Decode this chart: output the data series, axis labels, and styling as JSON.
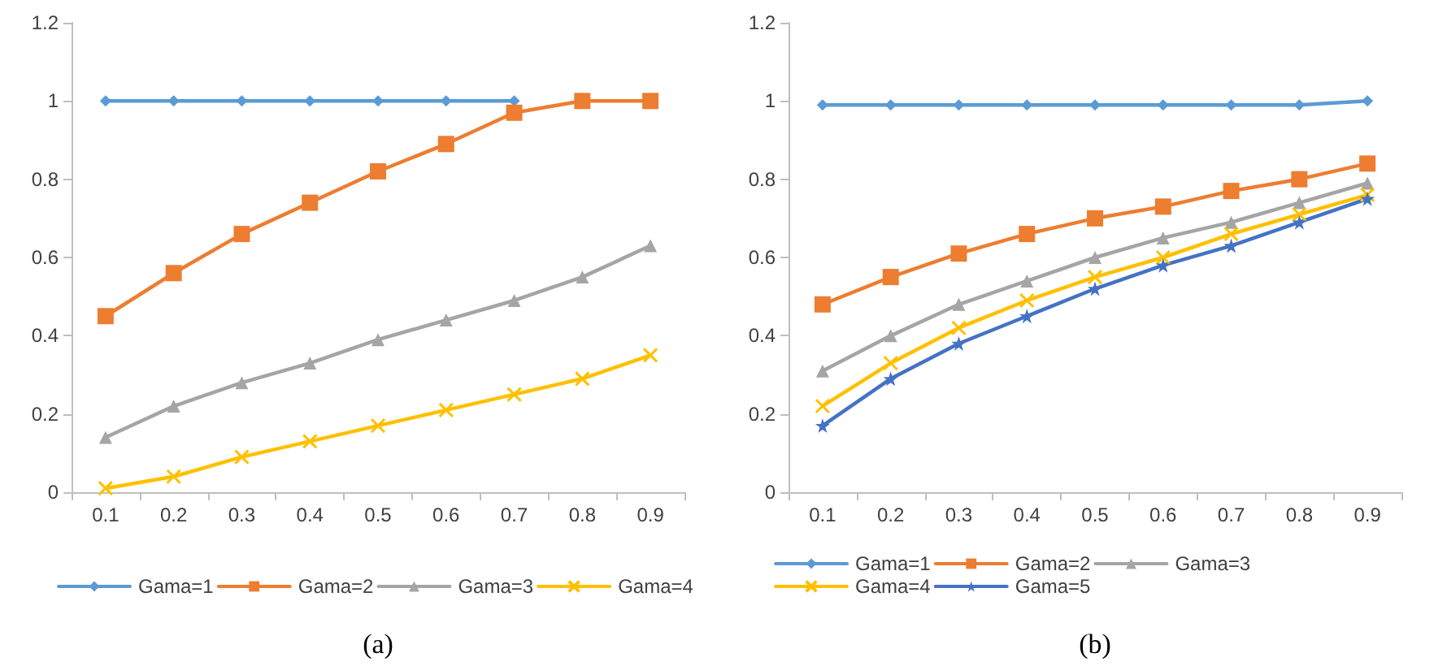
{
  "chart_data": [
    {
      "type": "line",
      "xlabel": "(a)",
      "categories": [
        "0.1",
        "0.2",
        "0.3",
        "0.4",
        "0.5",
        "0.6",
        "0.7",
        "0.8",
        "0.9"
      ],
      "ylim": [
        0,
        1.2
      ],
      "yticks": [
        0,
        0.2,
        0.4,
        0.6,
        0.8,
        1,
        1.2
      ],
      "grid": false,
      "legend": "bottom",
      "line_style": "solid",
      "series": [
        {
          "name": "Gama=1",
          "color": "#5b9bd5",
          "marker": "diamond",
          "values": [
            1,
            1,
            1,
            1,
            1,
            1,
            1,
            null,
            null
          ]
        },
        {
          "name": "Gama=2",
          "color": "#ed7d31",
          "marker": "square",
          "values": [
            0.45,
            0.56,
            0.66,
            0.74,
            0.82,
            0.89,
            0.97,
            1,
            1
          ]
        },
        {
          "name": "Gama=3",
          "color": "#a5a5a5",
          "marker": "triangle",
          "values": [
            0.14,
            0.22,
            0.28,
            0.33,
            0.39,
            0.44,
            0.49,
            0.55,
            0.63
          ]
        },
        {
          "name": "Gama=4",
          "color": "#ffc000",
          "marker": "cross",
          "values": [
            0.01,
            0.04,
            0.09,
            0.13,
            0.17,
            0.21,
            0.25,
            0.29,
            0.35
          ]
        }
      ]
    },
    {
      "type": "line",
      "xlabel": "(b)",
      "categories": [
        "0.1",
        "0.2",
        "0.3",
        "0.4",
        "0.5",
        "0.6",
        "0.7",
        "0.8",
        "0.9"
      ],
      "ylim": [
        0,
        1.2
      ],
      "yticks": [
        0,
        0.2,
        0.4,
        0.6,
        0.8,
        1,
        1.2
      ],
      "grid": false,
      "legend": "bottom",
      "line_style": "solid",
      "series": [
        {
          "name": "Gama=1",
          "color": "#5b9bd5",
          "marker": "diamond",
          "values": [
            0.99,
            0.99,
            0.99,
            0.99,
            0.99,
            0.99,
            0.99,
            0.99,
            1
          ]
        },
        {
          "name": "Gama=2",
          "color": "#ed7d31",
          "marker": "square",
          "values": [
            0.48,
            0.55,
            0.61,
            0.66,
            0.7,
            0.73,
            0.77,
            0.8,
            0.84
          ]
        },
        {
          "name": "Gama=3",
          "color": "#a5a5a5",
          "marker": "triangle",
          "values": [
            0.31,
            0.4,
            0.48,
            0.54,
            0.6,
            0.65,
            0.69,
            0.74,
            0.79
          ]
        },
        {
          "name": "Gama=4",
          "color": "#ffc000",
          "marker": "cross",
          "values": [
            0.22,
            0.33,
            0.42,
            0.49,
            0.55,
            0.6,
            0.66,
            0.71,
            0.76
          ]
        },
        {
          "name": "Gama=5",
          "color": "#4472c4",
          "marker": "star",
          "values": [
            0.17,
            0.29,
            0.38,
            0.45,
            0.52,
            0.58,
            0.63,
            0.69,
            0.75
          ]
        }
      ]
    }
  ]
}
